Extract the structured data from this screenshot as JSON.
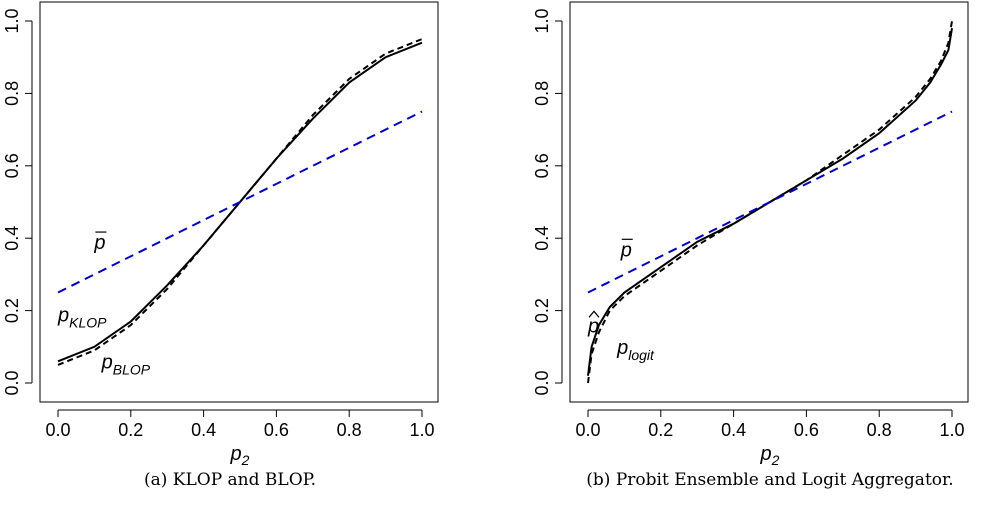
{
  "chart_data": [
    {
      "type": "line",
      "xlabel": "p",
      "xlabel_sub": "2",
      "xlim": [
        0,
        1
      ],
      "ylim": [
        0,
        1
      ],
      "xticks": [
        "0.0",
        "0.2",
        "0.4",
        "0.6",
        "0.8",
        "1.0"
      ],
      "yticks": [
        "0.0",
        "0.2",
        "0.4",
        "0.6",
        "0.8",
        "1.0"
      ],
      "caption": "(a) KLOP and BLOP.",
      "series": [
        {
          "name": "p_KLOP",
          "style": "solid",
          "color": "#000000",
          "x": [
            0,
            0.1,
            0.2,
            0.3,
            0.4,
            0.5,
            0.6,
            0.7,
            0.8,
            0.9,
            1.0
          ],
          "y": [
            0.06,
            0.1,
            0.17,
            0.27,
            0.38,
            0.5,
            0.62,
            0.73,
            0.83,
            0.9,
            0.94
          ]
        },
        {
          "name": "p_BLOP",
          "style": "dashed",
          "color": "#000000",
          "x": [
            0,
            0.1,
            0.2,
            0.3,
            0.4,
            0.5,
            0.6,
            0.7,
            0.8,
            0.9,
            1.0
          ],
          "y": [
            0.05,
            0.09,
            0.16,
            0.26,
            0.38,
            0.5,
            0.62,
            0.74,
            0.84,
            0.91,
            0.95
          ]
        },
        {
          "name": "p̄",
          "style": "dashed",
          "color": "#0000cc",
          "x": [
            0,
            1
          ],
          "y": [
            0.25,
            0.75
          ]
        }
      ],
      "annotations": [
        {
          "text": "p",
          "bar": true,
          "sub": "",
          "x": 0.1,
          "y": 0.37
        },
        {
          "text": "p",
          "bar": false,
          "sub": "KLOP",
          "x": 0.0,
          "y": 0.17
        },
        {
          "text": "p",
          "bar": false,
          "sub": "BLOP",
          "x": 0.12,
          "y": 0.04
        }
      ]
    },
    {
      "type": "line",
      "xlabel": "p",
      "xlabel_sub": "2",
      "xlim": [
        0,
        1
      ],
      "ylim": [
        0,
        1
      ],
      "xticks": [
        "0.0",
        "0.2",
        "0.4",
        "0.6",
        "0.8",
        "1.0"
      ],
      "yticks": [
        "0.0",
        "0.2",
        "0.4",
        "0.6",
        "0.8",
        "1.0"
      ],
      "caption": "(b) Probit Ensemble and Logit Aggregator.",
      "series": [
        {
          "name": "p̂",
          "style": "solid",
          "color": "#000000",
          "x": [
            0.0,
            0.01,
            0.03,
            0.06,
            0.1,
            0.2,
            0.3,
            0.4,
            0.5,
            0.6,
            0.7,
            0.8,
            0.9,
            0.94,
            0.97,
            0.99,
            1.0
          ],
          "y": [
            0.02,
            0.1,
            0.16,
            0.21,
            0.25,
            0.32,
            0.39,
            0.44,
            0.5,
            0.56,
            0.62,
            0.69,
            0.78,
            0.83,
            0.88,
            0.92,
            0.98
          ]
        },
        {
          "name": "p_logit",
          "style": "dashed",
          "color": "#000000",
          "x": [
            0.0,
            0.01,
            0.03,
            0.06,
            0.1,
            0.2,
            0.3,
            0.4,
            0.5,
            0.6,
            0.7,
            0.8,
            0.9,
            0.94,
            0.97,
            0.99,
            1.0
          ],
          "y": [
            0.0,
            0.08,
            0.14,
            0.2,
            0.24,
            0.31,
            0.38,
            0.44,
            0.5,
            0.56,
            0.63,
            0.7,
            0.79,
            0.84,
            0.89,
            0.94,
            1.0
          ]
        },
        {
          "name": "p̄",
          "style": "dashed",
          "color": "#0000cc",
          "x": [
            0,
            1
          ],
          "y": [
            0.25,
            0.75
          ]
        }
      ],
      "annotations": [
        {
          "text": "p",
          "bar": true,
          "sub": "",
          "x": 0.09,
          "y": 0.35
        },
        {
          "text": "p",
          "hat": true,
          "sub": "",
          "x": 0.0,
          "y": 0.14
        },
        {
          "text": "p",
          "bar": false,
          "sub": "logit",
          "x": 0.08,
          "y": 0.08
        }
      ]
    }
  ]
}
